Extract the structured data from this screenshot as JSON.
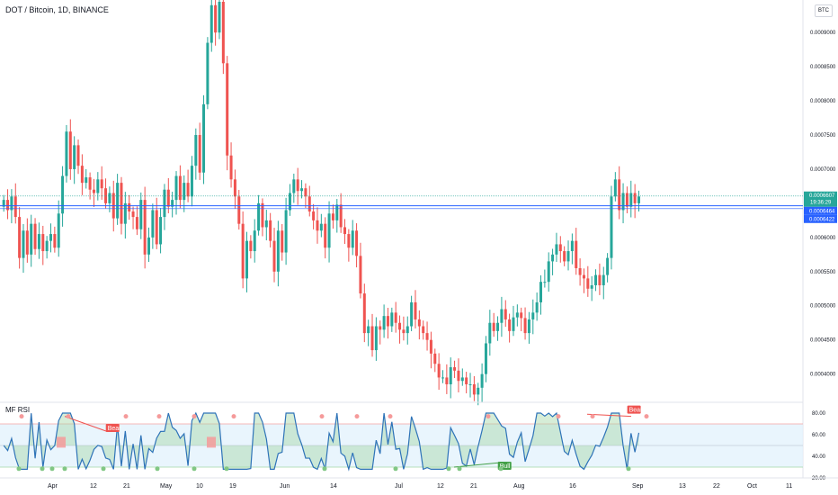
{
  "header": {
    "title": "DOT / Bitcoin, 1D, BINANCE",
    "currency_button": "BTC"
  },
  "indicator": {
    "name": "MF RSI",
    "levels": [
      80,
      70,
      40,
      30
    ]
  },
  "colors": {
    "up": "#26a69a",
    "down": "#ef5350",
    "price_line": "#2962ff",
    "ob_band": "#e3f2fd",
    "rsi_line": "#2e73b8",
    "bull_fill": "#a5d6a7",
    "bear_fill": "#ef9a9a"
  },
  "chart_data": [
    {
      "type": "candlestick",
      "title": "DOT / Bitcoin, 1D, BINANCE",
      "ylim": [
        0.00036,
        0.000945
      ],
      "y_ticks": [
        "0.0009000",
        "0.0008500",
        "0.0008000",
        "0.0007500",
        "0.0007000",
        "0.0006500",
        "0.0006000",
        "0.0005500",
        "0.0005000",
        "0.0004500",
        "0.0004000"
      ],
      "x_ticks": [
        "Apr",
        "12",
        "21",
        "May",
        "10",
        "19",
        "Jun",
        "14",
        "Jul",
        "12",
        "21",
        "Aug",
        "16",
        "Sep",
        "13",
        "22",
        "Oct",
        "11"
      ],
      "closes": [
        0.000655,
        0.00064,
        0.00066,
        0.00063,
        0.00057,
        0.00061,
        0.000575,
        0.00062,
        0.000583,
        0.000605,
        0.00058,
        0.000595,
        0.000605,
        0.000585,
        0.000635,
        0.00069,
        0.000755,
        0.0007,
        0.000735,
        0.000705,
        0.00068,
        0.000688,
        0.00067,
        0.000665,
        0.000685,
        0.000672,
        0.00065,
        0.000665,
        0.000628,
        0.00068,
        0.00062,
        0.00065,
        0.000638,
        0.00063,
        0.000612,
        0.000655,
        0.000575,
        0.0006,
        0.00064,
        0.00059,
        0.00063,
        0.00067,
        0.000645,
        0.000655,
        0.00069,
        0.000655,
        0.00068,
        0.00066,
        0.000705,
        0.00075,
        0.000695,
        0.000795,
        0.000885,
        0.00094,
        0.0009,
        0.000945,
        0.000855,
        0.00072,
        0.000685,
        0.00066,
        0.00062,
        0.00054,
        0.000595,
        0.00058,
        0.00061,
        0.00065,
        0.000615,
        0.000625,
        0.000595,
        0.00055,
        0.00061,
        0.000578,
        0.00064,
        0.000665,
        0.000685,
        0.000668,
        0.000672,
        0.00066,
        0.000638,
        0.000625,
        0.00061,
        0.00062,
        0.000585,
        0.000635,
        0.000625,
        0.000648,
        0.000615,
        0.000605,
        0.000585,
        0.00061,
        0.000573,
        0.000518,
        0.00046,
        0.00047,
        0.000435,
        0.00047,
        0.000465,
        0.000485,
        0.00047,
        0.00049,
        0.000475,
        0.000465,
        0.00046,
        0.00047,
        0.000505,
        0.00048,
        0.00047,
        0.00046,
        0.00045,
        0.00043,
        0.000415,
        0.000395,
        0.000395,
        0.000385,
        0.00041,
        0.000405,
        0.00039,
        0.000395,
        0.000385,
        0.000385,
        0.00037,
        0.00038,
        0.0004,
        0.000445,
        0.000475,
        0.000463,
        0.000475,
        0.000495,
        0.00048,
        0.000463,
        0.000483,
        0.00049,
        0.000482,
        0.00046,
        0.00048,
        0.00049,
        0.000505,
        0.000535,
        0.000535,
        0.000565,
        0.000575,
        0.00059,
        0.00058,
        0.000565,
        0.00058,
        0.000595,
        0.000555,
        0.000545,
        0.00054,
        0.000525,
        0.00053,
        0.000545,
        0.00053,
        0.000545,
        0.00057,
        0.00066,
        0.000685,
        0.00064,
        0.000665,
        0.000645,
        0.000665,
        0.00065,
        0.00066
      ],
      "last_price": "0.0006607",
      "last_price_countdown": "19:36:29",
      "price_lines": [
        "0.0006464",
        "0.0006422"
      ]
    },
    {
      "type": "line",
      "title": "MF RSI",
      "ylim": [
        20,
        85
      ],
      "y_ticks": [
        "80.00",
        "60.00",
        "40.00",
        "20.00"
      ],
      "annotations": [
        {
          "label": "Bear"
        },
        {
          "label": "Bull"
        },
        {
          "label": "Bear"
        }
      ]
    }
  ]
}
